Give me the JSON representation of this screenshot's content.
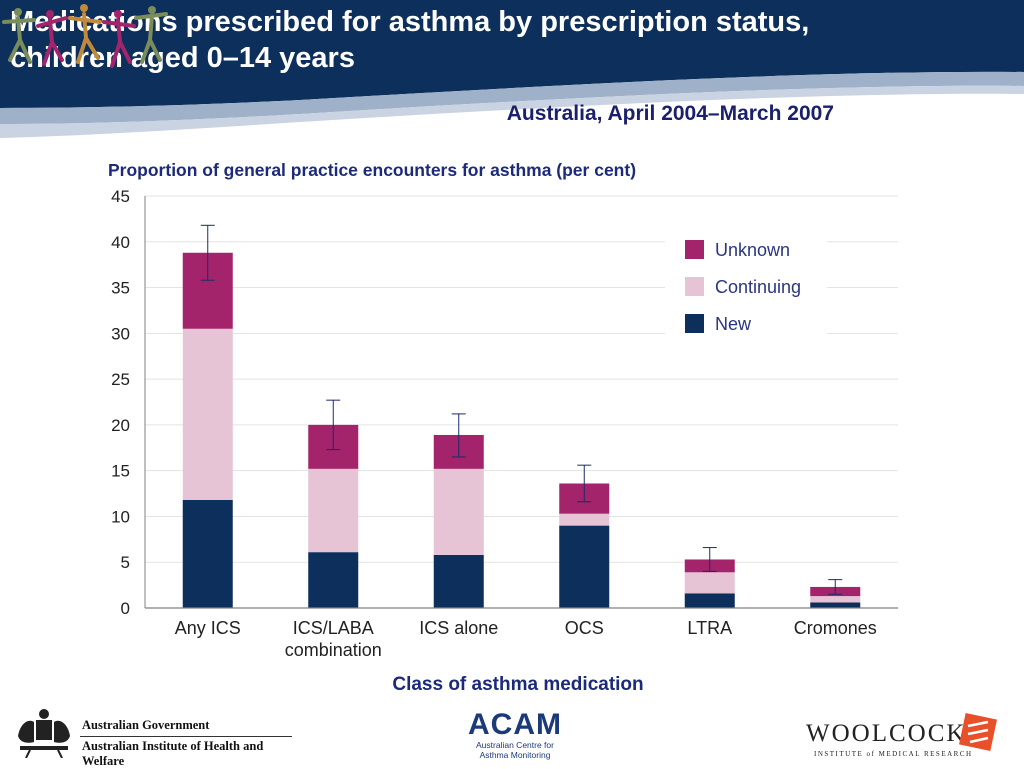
{
  "slide": {
    "title_line1": "Medications prescribed for asthma by prescription status,",
    "title_line2": "children aged 0–14 years",
    "subtitle": "Australia, April 2004–March 2007"
  },
  "colors": {
    "header_bg": "#0d2f5c",
    "title_text": "#ffffff",
    "subtitle_text": "#1a1f6e",
    "axis_title": "#1b2a7a",
    "new": "#0d2f5c",
    "continuing": "#e6c4d6",
    "unknown": "#a3246a"
  },
  "chart_data": {
    "type": "bar",
    "stacked": true,
    "ylabel": "Proportion of general practice encounters for asthma (per cent)",
    "xlabel": "Class of asthma medication",
    "ylim": [
      0,
      45
    ],
    "yticks": [
      0,
      5,
      10,
      15,
      20,
      25,
      30,
      35,
      40,
      45
    ],
    "grid": true,
    "legend_position": "top-right",
    "categories": [
      [
        "Any ICS"
      ],
      [
        "ICS/LABA",
        "combination"
      ],
      [
        "ICS alone"
      ],
      [
        "OCS"
      ],
      [
        "LTRA"
      ],
      [
        "Cromones"
      ]
    ],
    "series": [
      {
        "name": "New",
        "key": "new",
        "values": [
          11.8,
          6.1,
          5.8,
          9.0,
          1.6,
          0.6
        ]
      },
      {
        "name": "Continuing",
        "key": "continuing",
        "values": [
          18.7,
          9.1,
          9.4,
          1.3,
          2.3,
          0.7
        ]
      },
      {
        "name": "Unknown",
        "key": "unknown",
        "values": [
          8.3,
          4.8,
          3.7,
          3.3,
          1.4,
          1.0
        ]
      }
    ],
    "error_bars": [
      {
        "low": 35.8,
        "high": 41.8
      },
      {
        "low": 17.3,
        "high": 22.7
      },
      {
        "low": 16.5,
        "high": 21.2
      },
      {
        "low": 11.6,
        "high": 15.6
      },
      {
        "low": 4.0,
        "high": 6.6
      },
      {
        "low": 1.5,
        "high": 3.1
      }
    ],
    "legend_order": [
      "unknown",
      "continuing",
      "new"
    ]
  },
  "logos": {
    "gov_line1": "Australian Government",
    "gov_line2": "Australian Institute of Health and Welfare",
    "acam_big": "ACAM",
    "acam_small1": "Australian Centre for",
    "acam_small2": "Asthma Monitoring",
    "woolcock_big": "WOOLCOCK",
    "woolcock_small": "INSTITUTE of MEDICAL RESEARCH"
  }
}
